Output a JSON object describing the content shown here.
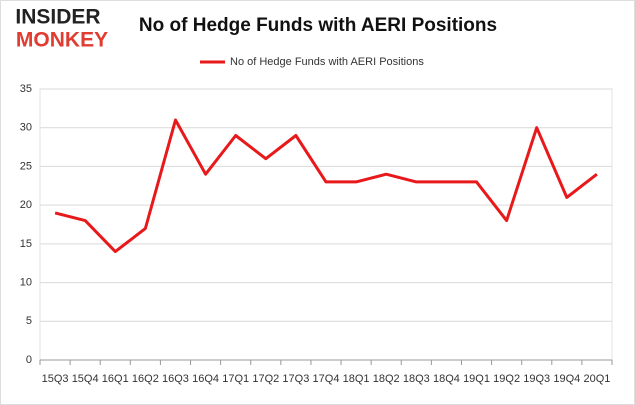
{
  "chart_data": {
    "type": "line",
    "title": "No of Hedge Funds with AERI Positions",
    "logo": [
      "INSIDER",
      "MONKEY"
    ],
    "categories": [
      "15Q3",
      "15Q4",
      "16Q1",
      "16Q2",
      "16Q3",
      "16Q4",
      "17Q1",
      "17Q2",
      "17Q3",
      "17Q4",
      "18Q1",
      "18Q2",
      "18Q3",
      "18Q4",
      "19Q1",
      "19Q2",
      "19Q3",
      "19Q4",
      "20Q1"
    ],
    "series": [
      {
        "name": "No of Hedge Funds with AERI Positions",
        "color": "#e8191b",
        "values": [
          19,
          18,
          14,
          17,
          31,
          24,
          29,
          26,
          29,
          23,
          23,
          24,
          23,
          23,
          23,
          18,
          30,
          21,
          24
        ]
      }
    ],
    "ylim": [
      0,
      35
    ],
    "yticks": [
      0,
      5,
      10,
      15,
      20,
      25,
      30,
      35
    ],
    "grid": true,
    "legend": "top"
  }
}
